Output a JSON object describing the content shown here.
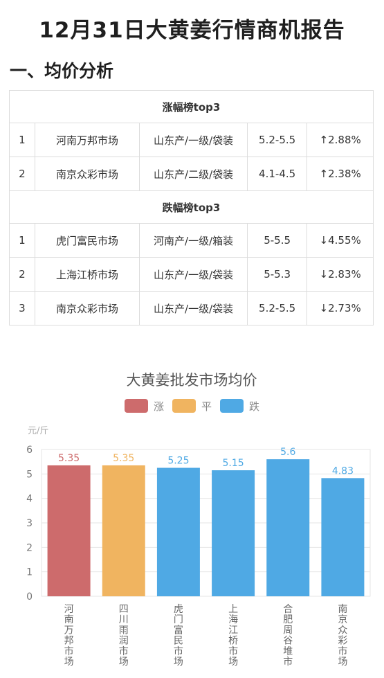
{
  "page": {
    "title": "12月31日大黄姜行情商机报告",
    "section_title": "一、均价分析"
  },
  "table": {
    "groups": [
      {
        "title": "涨幅榜top3",
        "rows": [
          {
            "rank": "1",
            "market": "河南万邦市场",
            "origin": "山东产/一级/袋装",
            "price": "5.2-5.5",
            "change": "↑2.88%"
          },
          {
            "rank": "2",
            "market": "南京众彩市场",
            "origin": "山东产/二级/袋装",
            "price": "4.1-4.5",
            "change": "↑2.38%"
          }
        ]
      },
      {
        "title": "跌幅榜top3",
        "rows": [
          {
            "rank": "1",
            "market": "虎门富民市场",
            "origin": "河南产/一级/箱装",
            "price": "5-5.5",
            "change": "↓4.55%"
          },
          {
            "rank": "2",
            "market": "上海江桥市场",
            "origin": "山东产/一级/袋装",
            "price": "5-5.3",
            "change": "↓2.83%"
          },
          {
            "rank": "3",
            "market": "南京众彩市场",
            "origin": "山东产/一级/袋装",
            "price": "5.2-5.5",
            "change": "↓2.73%"
          }
        ]
      }
    ]
  },
  "chart_data": {
    "type": "bar",
    "title": "大黄姜批发市场均价",
    "ylabel": "元/斤",
    "ylim": [
      0,
      6
    ],
    "yticks": [
      0,
      1,
      2,
      3,
      4,
      5,
      6
    ],
    "grid": true,
    "legend_position": "top-center",
    "legend": [
      {
        "label": "涨",
        "color": "#cd6b6c"
      },
      {
        "label": "平",
        "color": "#f0b460"
      },
      {
        "label": "跌",
        "color": "#4fa9e4"
      }
    ],
    "categories": [
      "河南万邦市场",
      "四川雨润市场",
      "虎门富民市场",
      "上海江桥市场",
      "合肥周谷堆市",
      "南京众彩市场"
    ],
    "values": [
      5.35,
      5.35,
      5.25,
      5.15,
      5.6,
      4.83
    ],
    "value_labels": [
      "5.35",
      "5.35",
      "5.25",
      "5.15",
      "5.6",
      "4.83"
    ],
    "bar_colors": [
      "#cd6b6c",
      "#f0b460",
      "#4fa9e4",
      "#4fa9e4",
      "#4fa9e4",
      "#4fa9e4"
    ]
  }
}
